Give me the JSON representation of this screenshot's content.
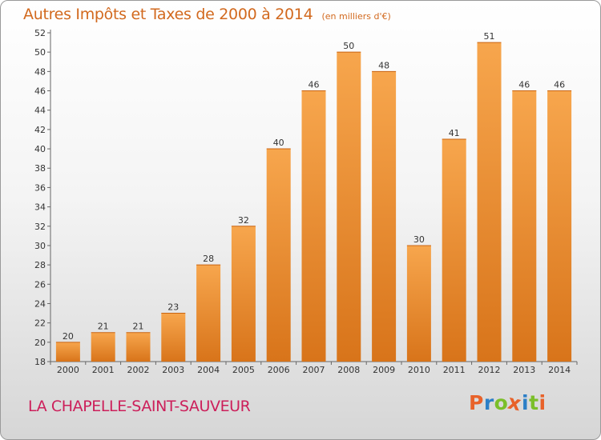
{
  "chart_data": {
    "type": "bar",
    "title": "Autres Impôts et Taxes de 2000 à 2014",
    "unit": "(en milliers d'€)",
    "categories": [
      "2000",
      "2001",
      "2002",
      "2003",
      "2004",
      "2005",
      "2006",
      "2007",
      "2008",
      "2009",
      "2010",
      "2011",
      "2012",
      "2013",
      "2014"
    ],
    "values": [
      20,
      21,
      21,
      23,
      28,
      32,
      40,
      46,
      50,
      48,
      30,
      41,
      51,
      46,
      46
    ],
    "ylim": [
      18,
      52
    ],
    "yticks": [
      18,
      20,
      22,
      24,
      26,
      28,
      30,
      32,
      34,
      36,
      38,
      40,
      42,
      44,
      46,
      48,
      50,
      52
    ],
    "grid": false,
    "bar_color_top": "#f7a64d",
    "bar_color_bottom": "#d8741a"
  },
  "commune": "LA CHAPELLE-SAINT-SAUVEUR",
  "logo": {
    "letters": [
      "P",
      "r",
      "o",
      "x",
      "i",
      "t",
      "i"
    ],
    "colors": [
      "#e8622a",
      "#2c7fc7",
      "#7bbf2a",
      "#e8622a",
      "#2c7fc7",
      "#7bbf2a",
      "#e8622a"
    ]
  }
}
